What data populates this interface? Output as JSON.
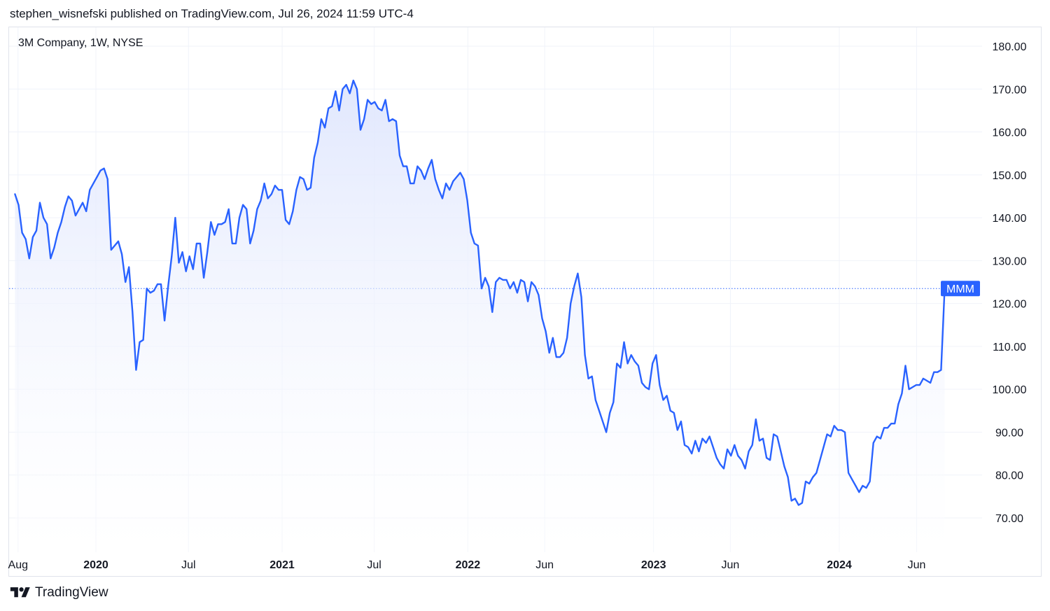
{
  "header": {
    "text": "stephen_wisnefski published on TradingView.com, Jul 26, 2024 11:59 UTC-4"
  },
  "footer": {
    "brand": "TradingView",
    "logo_icon": "tradingview-logo-icon"
  },
  "colors": {
    "line": "#2962ff",
    "fill_top": "#dfe6fd",
    "grid": "#f0f3fa",
    "price_tag_bg": "#2962ff",
    "price_tag_text": "#ffffff"
  },
  "chart_data": {
    "type": "area",
    "symbol_label": "3M Company, 1W, NYSE",
    "ticker": "MMM",
    "last_value": 123.5,
    "y_ticks": [
      "180.00",
      "170.00",
      "160.00",
      "150.00",
      "140.00",
      "130.00",
      "120.00",
      "110.00",
      "100.00",
      "90.00",
      "80.00",
      "70.00"
    ],
    "ylim": [
      70,
      180
    ],
    "x_ticks": [
      {
        "label": "Aug",
        "x": "2019-08-01",
        "bold": false
      },
      {
        "label": "2020",
        "x": "2020-01-01",
        "bold": true
      },
      {
        "label": "Jul",
        "x": "2020-07-01",
        "bold": false
      },
      {
        "label": "2021",
        "x": "2021-01-01",
        "bold": true
      },
      {
        "label": "Jul",
        "x": "2021-07-01",
        "bold": false
      },
      {
        "label": "2022",
        "x": "2022-01-01",
        "bold": true
      },
      {
        "label": "Jun",
        "x": "2022-06-01",
        "bold": false
      },
      {
        "label": "2023",
        "x": "2023-01-01",
        "bold": true
      },
      {
        "label": "Jun",
        "x": "2023-06-01",
        "bold": false
      },
      {
        "label": "2024",
        "x": "2024-01-01",
        "bold": true
      },
      {
        "label": "Jun",
        "x": "2024-06-01",
        "bold": false
      }
    ],
    "grid": true,
    "series": [
      {
        "points": [
          [
            "2019-07-26",
            145.5
          ],
          [
            "2019-08-02",
            143
          ],
          [
            "2019-08-09",
            136.5
          ],
          [
            "2019-08-16",
            135
          ],
          [
            "2019-08-23",
            130.5
          ],
          [
            "2019-08-30",
            135.5
          ],
          [
            "2019-09-06",
            137
          ],
          [
            "2019-09-13",
            143.5
          ],
          [
            "2019-09-20",
            140
          ],
          [
            "2019-09-27",
            138.5
          ],
          [
            "2019-10-04",
            130.5
          ],
          [
            "2019-10-11",
            133
          ],
          [
            "2019-10-18",
            136.5
          ],
          [
            "2019-10-25",
            139
          ],
          [
            "2019-11-01",
            142.5
          ],
          [
            "2019-11-08",
            145
          ],
          [
            "2019-11-15",
            144
          ],
          [
            "2019-11-22",
            140.5
          ],
          [
            "2019-11-29",
            142
          ],
          [
            "2019-12-06",
            143.5
          ],
          [
            "2019-12-13",
            141.5
          ],
          [
            "2019-12-20",
            146.5
          ],
          [
            "2019-12-27",
            148
          ],
          [
            "2020-01-03",
            149.5
          ],
          [
            "2020-01-10",
            151
          ],
          [
            "2020-01-17",
            151.5
          ],
          [
            "2020-01-24",
            149
          ],
          [
            "2020-01-31",
            132.5
          ],
          [
            "2020-02-07",
            133.5
          ],
          [
            "2020-02-14",
            134.5
          ],
          [
            "2020-02-21",
            131.5
          ],
          [
            "2020-02-28",
            125
          ],
          [
            "2020-03-06",
            128.5
          ],
          [
            "2020-03-13",
            118
          ],
          [
            "2020-03-20",
            104.5
          ],
          [
            "2020-03-27",
            111
          ],
          [
            "2020-04-03",
            111.5
          ],
          [
            "2020-04-10",
            123.5
          ],
          [
            "2020-04-17",
            122.5
          ],
          [
            "2020-04-24",
            123
          ],
          [
            "2020-05-01",
            124.5
          ],
          [
            "2020-05-08",
            124.5
          ],
          [
            "2020-05-15",
            116
          ],
          [
            "2020-05-22",
            124
          ],
          [
            "2020-05-29",
            131
          ],
          [
            "2020-06-05",
            140
          ],
          [
            "2020-06-12",
            129.5
          ],
          [
            "2020-06-19",
            132
          ],
          [
            "2020-06-26",
            127.5
          ],
          [
            "2020-07-03",
            131
          ],
          [
            "2020-07-10",
            128
          ],
          [
            "2020-07-17",
            134
          ],
          [
            "2020-07-24",
            134
          ],
          [
            "2020-07-31",
            126
          ],
          [
            "2020-08-07",
            132
          ],
          [
            "2020-08-14",
            139
          ],
          [
            "2020-08-21",
            136
          ],
          [
            "2020-08-28",
            138.5
          ],
          [
            "2020-09-04",
            138.5
          ],
          [
            "2020-09-11",
            139
          ],
          [
            "2020-09-18",
            142
          ],
          [
            "2020-09-25",
            134
          ],
          [
            "2020-10-02",
            134
          ],
          [
            "2020-10-09",
            140
          ],
          [
            "2020-10-16",
            143
          ],
          [
            "2020-10-23",
            142
          ],
          [
            "2020-10-30",
            134
          ],
          [
            "2020-11-06",
            137
          ],
          [
            "2020-11-13",
            142
          ],
          [
            "2020-11-20",
            144
          ],
          [
            "2020-11-27",
            148
          ],
          [
            "2020-12-04",
            144.5
          ],
          [
            "2020-12-11",
            145.5
          ],
          [
            "2020-12-18",
            147.5
          ],
          [
            "2020-12-25",
            146.5
          ],
          [
            "2021-01-01",
            146.5
          ],
          [
            "2021-01-08",
            139.5
          ],
          [
            "2021-01-15",
            138.5
          ],
          [
            "2021-01-22",
            141.5
          ],
          [
            "2021-01-29",
            146.5
          ],
          [
            "2021-02-05",
            149.5
          ],
          [
            "2021-02-12",
            149
          ],
          [
            "2021-02-19",
            146.5
          ],
          [
            "2021-02-26",
            147
          ],
          [
            "2021-03-05",
            154
          ],
          [
            "2021-03-12",
            157.5
          ],
          [
            "2021-03-19",
            163
          ],
          [
            "2021-03-26",
            161
          ],
          [
            "2021-04-02",
            165.5
          ],
          [
            "2021-04-09",
            166
          ],
          [
            "2021-04-16",
            169.5
          ],
          [
            "2021-04-23",
            165
          ],
          [
            "2021-04-30",
            170
          ],
          [
            "2021-05-07",
            171
          ],
          [
            "2021-05-14",
            169
          ],
          [
            "2021-05-21",
            172
          ],
          [
            "2021-05-28",
            170
          ],
          [
            "2021-06-04",
            160.5
          ],
          [
            "2021-06-11",
            163
          ],
          [
            "2021-06-18",
            167.5
          ],
          [
            "2021-06-25",
            166.5
          ],
          [
            "2021-07-02",
            167
          ],
          [
            "2021-07-09",
            165.5
          ],
          [
            "2021-07-16",
            165
          ],
          [
            "2021-07-23",
            167.5
          ],
          [
            "2021-07-30",
            162.5
          ],
          [
            "2021-08-06",
            163
          ],
          [
            "2021-08-13",
            162.5
          ],
          [
            "2021-08-20",
            154.5
          ],
          [
            "2021-08-27",
            152
          ],
          [
            "2021-09-03",
            152
          ],
          [
            "2021-09-10",
            148
          ],
          [
            "2021-09-17",
            148
          ],
          [
            "2021-09-24",
            152
          ],
          [
            "2021-10-01",
            151
          ],
          [
            "2021-10-08",
            149
          ],
          [
            "2021-10-15",
            151.5
          ],
          [
            "2021-10-22",
            153.5
          ],
          [
            "2021-10-29",
            149
          ],
          [
            "2021-11-05",
            146.5
          ],
          [
            "2021-11-12",
            144.5
          ],
          [
            "2021-11-19",
            148
          ],
          [
            "2021-11-26",
            146.5
          ],
          [
            "2021-12-03",
            148.5
          ],
          [
            "2021-12-10",
            149.5
          ],
          [
            "2021-12-17",
            150.5
          ],
          [
            "2021-12-24",
            149
          ],
          [
            "2021-12-31",
            144
          ],
          [
            "2022-01-07",
            136.5
          ],
          [
            "2022-01-14",
            134
          ],
          [
            "2022-01-21",
            133.5
          ],
          [
            "2022-01-28",
            123.5
          ],
          [
            "2022-02-04",
            126
          ],
          [
            "2022-02-11",
            124
          ],
          [
            "2022-02-18",
            118
          ],
          [
            "2022-02-25",
            125
          ],
          [
            "2022-03-04",
            126
          ],
          [
            "2022-03-11",
            125.5
          ],
          [
            "2022-03-18",
            125.5
          ],
          [
            "2022-03-25",
            123.5
          ],
          [
            "2022-04-01",
            125
          ],
          [
            "2022-04-08",
            122.5
          ],
          [
            "2022-04-15",
            125.5
          ],
          [
            "2022-04-22",
            125
          ],
          [
            "2022-04-29",
            120.5
          ],
          [
            "2022-05-06",
            125
          ],
          [
            "2022-05-13",
            124
          ],
          [
            "2022-05-20",
            122
          ],
          [
            "2022-05-27",
            116.5
          ],
          [
            "2022-06-03",
            113.5
          ],
          [
            "2022-06-10",
            108.5
          ],
          [
            "2022-06-17",
            112
          ],
          [
            "2022-06-24",
            107.5
          ],
          [
            "2022-07-01",
            107.5
          ],
          [
            "2022-07-08",
            108.5
          ],
          [
            "2022-07-15",
            112
          ],
          [
            "2022-07-22",
            120
          ],
          [
            "2022-07-29",
            124
          ],
          [
            "2022-08-05",
            127
          ],
          [
            "2022-08-12",
            121.5
          ],
          [
            "2022-08-19",
            108
          ],
          [
            "2022-08-26",
            102.5
          ],
          [
            "2022-09-02",
            103
          ],
          [
            "2022-09-09",
            97.5
          ],
          [
            "2022-09-16",
            95
          ],
          [
            "2022-09-23",
            92.5
          ],
          [
            "2022-09-30",
            90
          ],
          [
            "2022-10-07",
            94.5
          ],
          [
            "2022-10-14",
            97
          ],
          [
            "2022-10-21",
            106
          ],
          [
            "2022-10-28",
            105
          ],
          [
            "2022-11-04",
            111
          ],
          [
            "2022-11-11",
            106
          ],
          [
            "2022-11-18",
            108
          ],
          [
            "2022-11-25",
            106.5
          ],
          [
            "2022-12-02",
            105.5
          ],
          [
            "2022-12-09",
            101.5
          ],
          [
            "2022-12-16",
            100.5
          ],
          [
            "2022-12-23",
            100
          ],
          [
            "2022-12-30",
            106
          ],
          [
            "2023-01-06",
            108
          ],
          [
            "2023-01-13",
            101
          ],
          [
            "2023-01-20",
            97.5
          ],
          [
            "2023-01-27",
            98.5
          ],
          [
            "2023-02-03",
            95
          ],
          [
            "2023-02-10",
            94.5
          ],
          [
            "2023-02-17",
            90.5
          ],
          [
            "2023-02-24",
            92.5
          ],
          [
            "2023-03-03",
            87
          ],
          [
            "2023-03-10",
            86.5
          ],
          [
            "2023-03-17",
            85
          ],
          [
            "2023-03-24",
            88
          ],
          [
            "2023-03-31",
            85.5
          ],
          [
            "2023-04-07",
            88.5
          ],
          [
            "2023-04-14",
            87.5
          ],
          [
            "2023-04-21",
            89
          ],
          [
            "2023-04-28",
            86.5
          ],
          [
            "2023-05-05",
            84
          ],
          [
            "2023-05-12",
            82.5
          ],
          [
            "2023-05-19",
            81.5
          ],
          [
            "2023-05-26",
            86
          ],
          [
            "2023-06-02",
            84.5
          ],
          [
            "2023-06-09",
            87
          ],
          [
            "2023-06-16",
            84.5
          ],
          [
            "2023-06-23",
            83.5
          ],
          [
            "2023-06-30",
            81.5
          ],
          [
            "2023-07-07",
            85.5
          ],
          [
            "2023-07-14",
            87
          ],
          [
            "2023-07-21",
            93
          ],
          [
            "2023-07-28",
            88
          ],
          [
            "2023-08-04",
            88.5
          ],
          [
            "2023-08-11",
            84
          ],
          [
            "2023-08-18",
            83.5
          ],
          [
            "2023-08-25",
            89.5
          ],
          [
            "2023-09-01",
            89
          ],
          [
            "2023-09-08",
            85.5
          ],
          [
            "2023-09-15",
            82
          ],
          [
            "2023-09-22",
            79.5
          ],
          [
            "2023-09-29",
            74
          ],
          [
            "2023-10-06",
            74.5
          ],
          [
            "2023-10-13",
            73
          ],
          [
            "2023-10-20",
            73.5
          ],
          [
            "2023-10-27",
            78.5
          ],
          [
            "2023-11-03",
            78
          ],
          [
            "2023-11-10",
            79.5
          ],
          [
            "2023-11-17",
            80.5
          ],
          [
            "2023-11-24",
            83.5
          ],
          [
            "2023-12-01",
            86.5
          ],
          [
            "2023-12-08",
            89.5
          ],
          [
            "2023-12-15",
            89
          ],
          [
            "2023-12-22",
            91.5
          ],
          [
            "2023-12-29",
            90.5
          ],
          [
            "2024-01-05",
            90.5
          ],
          [
            "2024-01-12",
            90
          ],
          [
            "2024-01-19",
            80.5
          ],
          [
            "2024-01-26",
            79
          ],
          [
            "2024-02-02",
            77.5
          ],
          [
            "2024-02-09",
            76
          ],
          [
            "2024-02-16",
            77.5
          ],
          [
            "2024-02-23",
            77
          ],
          [
            "2024-03-01",
            78.5
          ],
          [
            "2024-03-08",
            87.5
          ],
          [
            "2024-03-15",
            89
          ],
          [
            "2024-03-22",
            88.5
          ],
          [
            "2024-03-29",
            91
          ],
          [
            "2024-04-05",
            91
          ],
          [
            "2024-04-12",
            92
          ],
          [
            "2024-04-19",
            92
          ],
          [
            "2024-04-26",
            96.5
          ],
          [
            "2024-05-03",
            99
          ],
          [
            "2024-05-10",
            105.5
          ],
          [
            "2024-05-17",
            100
          ],
          [
            "2024-05-24",
            100.5
          ],
          [
            "2024-05-31",
            101
          ],
          [
            "2024-06-07",
            101
          ],
          [
            "2024-06-14",
            102.5
          ],
          [
            "2024-06-21",
            102
          ],
          [
            "2024-06-28",
            101.5
          ],
          [
            "2024-07-05",
            104
          ],
          [
            "2024-07-12",
            104
          ],
          [
            "2024-07-19",
            104.5
          ],
          [
            "2024-07-26",
            123.5
          ]
        ]
      }
    ]
  }
}
